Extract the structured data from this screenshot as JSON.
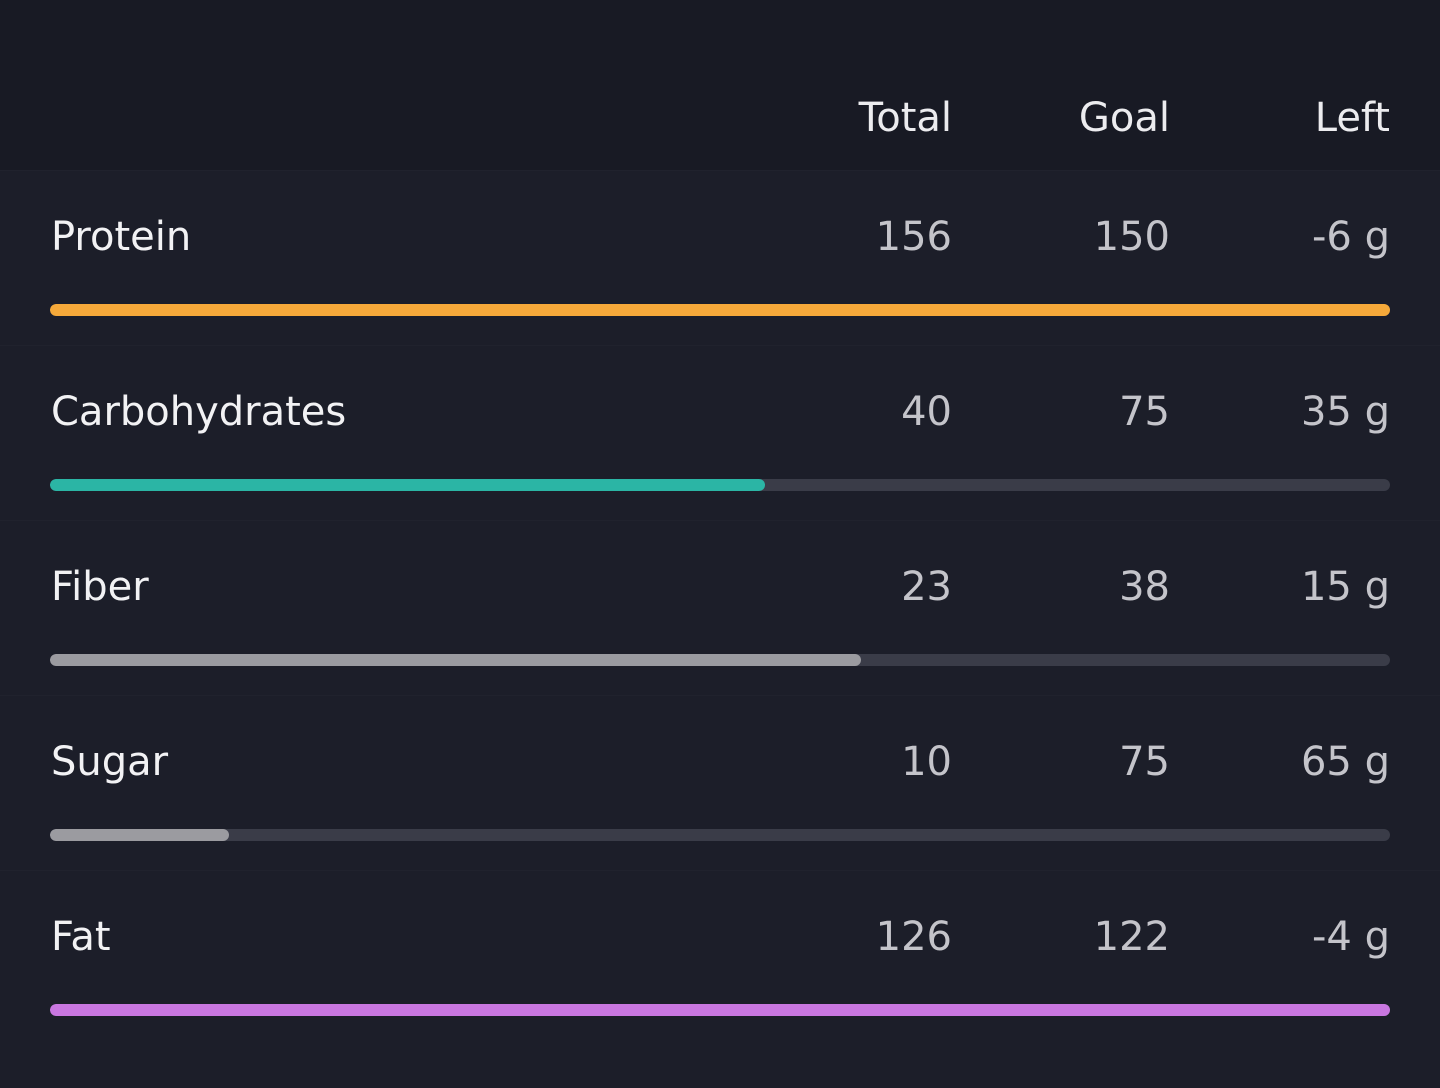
{
  "table": {
    "columns": [
      "Total",
      "Goal",
      "Left"
    ],
    "rows": [
      {
        "name": "Protein",
        "total": 156,
        "goal": 150,
        "left": "-6 g",
        "color": "#f5a93a"
      },
      {
        "name": "Carbohydrates",
        "total": 40,
        "goal": 75,
        "left": "35 g",
        "color": "#2bb5a5"
      },
      {
        "name": "Fiber",
        "total": 23,
        "goal": 38,
        "left": "15 g",
        "color": "#9b9ba0"
      },
      {
        "name": "Sugar",
        "total": 10,
        "goal": 75,
        "left": "65 g",
        "color": "#9b9ba0"
      },
      {
        "name": "Fat",
        "total": 126,
        "goal": 122,
        "left": "-4 g",
        "color": "#c977e0"
      }
    ]
  }
}
